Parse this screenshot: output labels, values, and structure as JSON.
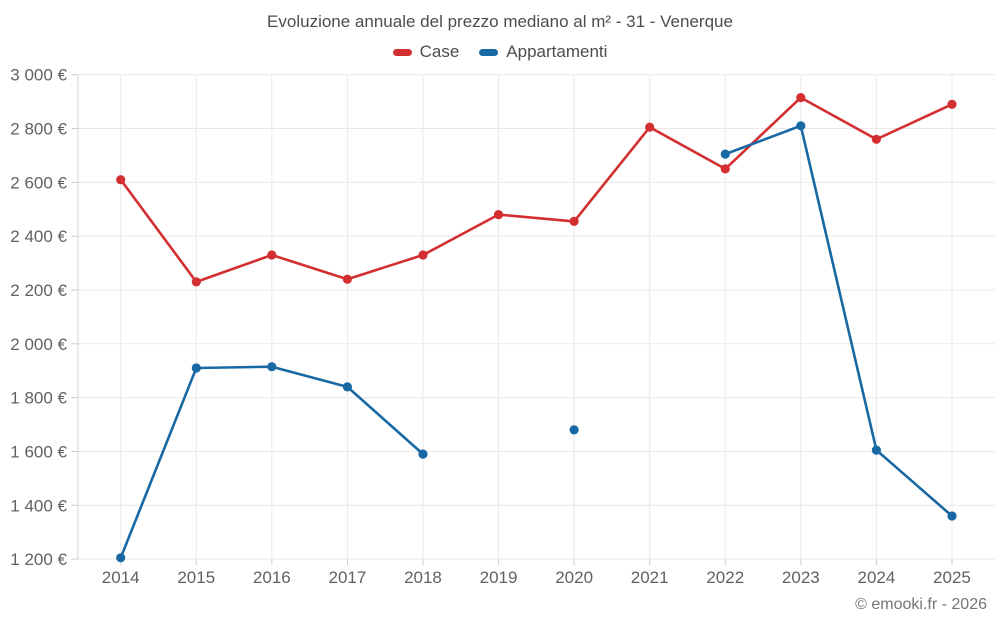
{
  "title": "Evoluzione annuale del prezzo mediano al m² - 31 - Venerque",
  "footer": {
    "credit": "© emooki.fr - 2026"
  },
  "colors": {
    "case_red": "#d32f31",
    "apartments_blue": "#1768a3",
    "gridline": "#e9e9e9",
    "axis_line": "#d5d5d5",
    "tick": "#cccccc",
    "axis_text": "#616161",
    "title_text": "#4d4d4d",
    "footer_text": "#757575"
  },
  "chart_data": {
    "type": "line",
    "title": "Evoluzione annuale del prezzo mediano al m² - 31 - Venerque",
    "x": [
      2014,
      2015,
      2016,
      2017,
      2018,
      2019,
      2020,
      2021,
      2022,
      2023,
      2024,
      2025
    ],
    "series": [
      {
        "name": "Case",
        "color": "#d32f31",
        "values": [
          2610,
          2230,
          2330,
          2240,
          2330,
          2480,
          2455,
          2805,
          2650,
          2915,
          2760,
          2890
        ]
      },
      {
        "name": "Appartamenti",
        "color": "#1768a3",
        "values": [
          1205,
          1910,
          1915,
          1840,
          1590,
          null,
          1680,
          null,
          2705,
          2810,
          1605,
          1360
        ]
      }
    ],
    "xlabel": "",
    "ylabel": "",
    "ylim": [
      1200,
      3000
    ],
    "ytick_step": 200,
    "ytick_suffix": " €",
    "grid": true,
    "legend_position": "top",
    "legend_entries": [
      "Case",
      "Appartamenti"
    ]
  }
}
